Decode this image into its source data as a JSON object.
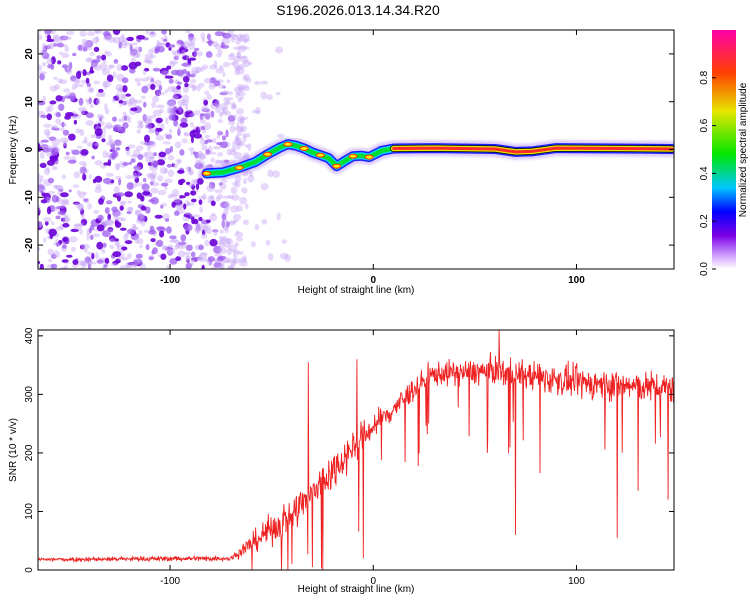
{
  "title": "S196.2026.013.14.34.R20",
  "chart_data": [
    {
      "type": "heatmap",
      "xlabel": "Height of straight line (km)",
      "ylabel": "Frequency (Hz)",
      "xlim": [
        -165,
        148
      ],
      "ylim": [
        -25,
        25
      ],
      "xticks": [
        -100,
        0,
        100
      ],
      "yticks": [
        -20,
        -10,
        0,
        10,
        20
      ],
      "noise_region_x": [
        -165,
        -62
      ],
      "track": [
        {
          "x": -82,
          "f": -5.0
        },
        {
          "x": -74,
          "f": -4.8
        },
        {
          "x": -66,
          "f": -3.8
        },
        {
          "x": -58,
          "f": -2.6
        },
        {
          "x": -52,
          "f": -1.0
        },
        {
          "x": -46,
          "f": 0.4
        },
        {
          "x": -42,
          "f": 1.1
        },
        {
          "x": -38,
          "f": 0.8
        },
        {
          "x": -34,
          "f": 0.2
        },
        {
          "x": -30,
          "f": -0.6
        },
        {
          "x": -26,
          "f": -1.2
        },
        {
          "x": -22,
          "f": -1.8
        },
        {
          "x": -18,
          "f": -3.5
        },
        {
          "x": -14,
          "f": -2.4
        },
        {
          "x": -10,
          "f": -1.4
        },
        {
          "x": -6,
          "f": -1.3
        },
        {
          "x": -2,
          "f": -1.6
        },
        {
          "x": 4,
          "f": -0.3
        },
        {
          "x": 10,
          "f": 0.2
        },
        {
          "x": 30,
          "f": 0.3
        },
        {
          "x": 60,
          "f": 0.1
        },
        {
          "x": 70,
          "f": -0.5
        },
        {
          "x": 78,
          "f": -0.4
        },
        {
          "x": 90,
          "f": 0.3
        },
        {
          "x": 120,
          "f": 0.2
        },
        {
          "x": 147,
          "f": 0.1
        }
      ],
      "colorbar": {
        "label": "Normalized spectral amplitude",
        "range": [
          0,
          1
        ],
        "ticks": [
          "0.0",
          "0.2",
          "0.4",
          "0.6",
          "0.8"
        ],
        "tick_values": [
          0.0,
          0.2,
          0.4,
          0.6,
          0.8
        ],
        "colors": [
          "#ffffff",
          "#cc99ff",
          "#7a00e6",
          "#0000ff",
          "#00c8ff",
          "#00e600",
          "#e6e600",
          "#ff4000",
          "#ff00aa"
        ]
      }
    },
    {
      "type": "line",
      "xlabel": "Height of straight line (km)",
      "ylabel": "SNR (10 * v/v)",
      "xlim": [
        -165,
        148
      ],
      "ylim": [
        0,
        410
      ],
      "xticks": [
        -100,
        0,
        100
      ],
      "yticks": [
        0,
        100,
        200,
        300,
        400
      ],
      "color": "#ee2222",
      "envelope": [
        {
          "x": -165,
          "mean": 18,
          "spread": 6
        },
        {
          "x": -70,
          "mean": 20,
          "spread": 8
        },
        {
          "x": -62,
          "mean": 40,
          "spread": 25
        },
        {
          "x": -50,
          "mean": 70,
          "spread": 45
        },
        {
          "x": -40,
          "mean": 95,
          "spread": 55
        },
        {
          "x": -30,
          "mean": 130,
          "spread": 60
        },
        {
          "x": -20,
          "mean": 170,
          "spread": 55
        },
        {
          "x": -10,
          "mean": 210,
          "spread": 50
        },
        {
          "x": 0,
          "mean": 245,
          "spread": 40
        },
        {
          "x": 10,
          "mean": 275,
          "spread": 38
        },
        {
          "x": 20,
          "mean": 310,
          "spread": 35
        },
        {
          "x": 30,
          "mean": 335,
          "spread": 35
        },
        {
          "x": 60,
          "mean": 340,
          "spread": 40
        },
        {
          "x": 100,
          "mean": 320,
          "spread": 45
        },
        {
          "x": 148,
          "mean": 310,
          "spread": 45
        }
      ],
      "spikes": [
        {
          "x": -32,
          "y": 355
        },
        {
          "x": -40,
          "y": 10
        },
        {
          "x": -30,
          "y": 5
        },
        {
          "x": -8,
          "y": 360
        },
        {
          "x": -5,
          "y": 20
        },
        {
          "x": 62,
          "y": 410
        },
        {
          "x": 70,
          "y": 60
        },
        {
          "x": 120,
          "y": 55
        },
        {
          "x": 145,
          "y": 120
        }
      ]
    }
  ]
}
